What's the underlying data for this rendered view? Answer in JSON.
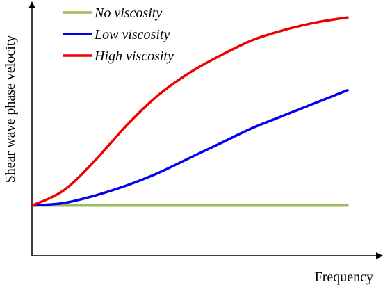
{
  "chart_data": {
    "type": "line",
    "title": "",
    "xlabel": "Frequency",
    "ylabel": "Shear wave phase velocity",
    "xlim": [
      0,
      1
    ],
    "ylim": [
      0,
      1
    ],
    "x_ticks_shown": false,
    "y_ticks_shown": false,
    "grid": false,
    "legend_position": "top-left",
    "series": [
      {
        "name": "No viscosity",
        "color": "#9bbb59",
        "x": [
          0,
          0.1,
          0.2,
          0.3,
          0.4,
          0.5,
          0.6,
          0.7,
          0.8,
          0.9,
          1
        ],
        "values": [
          0.2,
          0.2,
          0.2,
          0.2,
          0.2,
          0.2,
          0.2,
          0.2,
          0.2,
          0.2,
          0.2
        ]
      },
      {
        "name": "Low viscosity",
        "color": "#0000ee",
        "x": [
          0,
          0.1,
          0.2,
          0.3,
          0.4,
          0.5,
          0.6,
          0.7,
          0.8,
          0.9,
          1
        ],
        "values": [
          0.2,
          0.21,
          0.24,
          0.28,
          0.33,
          0.39,
          0.45,
          0.51,
          0.56,
          0.61,
          0.66
        ]
      },
      {
        "name": "High viscosity",
        "color": "#ee0000",
        "x": [
          0,
          0.1,
          0.2,
          0.3,
          0.4,
          0.5,
          0.6,
          0.7,
          0.8,
          0.9,
          1
        ],
        "values": [
          0.2,
          0.26,
          0.38,
          0.52,
          0.64,
          0.73,
          0.8,
          0.86,
          0.9,
          0.93,
          0.95
        ]
      }
    ]
  }
}
